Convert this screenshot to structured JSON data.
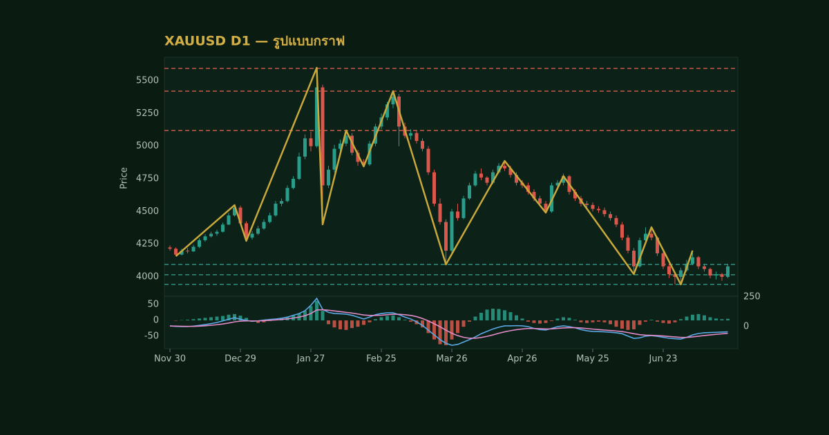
{
  "chart_data": [
    {
      "type": "candlestick",
      "title": "XAUUSD D1 — รูปแบบกราฟ",
      "ylabel": "Price",
      "categories": [
        "Nov 30",
        null,
        null,
        null,
        null,
        null,
        null,
        null,
        null,
        null,
        null,
        null,
        "Dec 29",
        null,
        null,
        null,
        null,
        null,
        null,
        null,
        null,
        null,
        null,
        null,
        "Jan 27",
        null,
        null,
        null,
        null,
        null,
        null,
        null,
        null,
        null,
        null,
        null,
        "Feb 25",
        null,
        null,
        null,
        null,
        null,
        null,
        null,
        null,
        null,
        null,
        null,
        "Mar 26",
        null,
        null,
        null,
        null,
        null,
        null,
        null,
        null,
        null,
        null,
        null,
        "Apr 26",
        null,
        null,
        null,
        null,
        null,
        null,
        null,
        null,
        null,
        null,
        null,
        "May 25",
        null,
        null,
        null,
        null,
        null,
        null,
        null,
        null,
        null,
        null,
        null,
        "Jun 23",
        null,
        null,
        null,
        null,
        null,
        null,
        null,
        null,
        null,
        null,
        null
      ],
      "ohlc": [
        [
          4225,
          4240,
          4200,
          4215
        ],
        [
          4215,
          4225,
          4160,
          4170
        ],
        [
          4170,
          4215,
          4165,
          4200
        ],
        [
          4200,
          4220,
          4180,
          4195
        ],
        [
          4195,
          4245,
          4190,
          4230
        ],
        [
          4230,
          4295,
          4220,
          4280
        ],
        [
          4280,
          4325,
          4270,
          4310
        ],
        [
          4310,
          4345,
          4300,
          4330
        ],
        [
          4330,
          4360,
          4315,
          4345
        ],
        [
          4345,
          4415,
          4340,
          4400
        ],
        [
          4400,
          4490,
          4395,
          4470
        ],
        [
          4470,
          4550,
          4460,
          4530
        ],
        [
          4530,
          4545,
          4395,
          4410
        ],
        [
          4410,
          4425,
          4270,
          4300
        ],
        [
          4300,
          4350,
          4285,
          4330
        ],
        [
          4330,
          4390,
          4320,
          4370
        ],
        [
          4370,
          4440,
          4360,
          4420
        ],
        [
          4420,
          4490,
          4410,
          4470
        ],
        [
          4470,
          4580,
          4460,
          4560
        ],
        [
          4560,
          4600,
          4540,
          4580
        ],
        [
          4580,
          4700,
          4570,
          4680
        ],
        [
          4680,
          4770,
          4670,
          4750
        ],
        [
          4750,
          4950,
          4740,
          4920
        ],
        [
          4920,
          5090,
          4900,
          5060
        ],
        [
          5060,
          5110,
          4960,
          5000
        ],
        [
          5000,
          5600,
          4990,
          5450
        ],
        [
          5450,
          5470,
          4400,
          4700
        ],
        [
          4700,
          4850,
          4680,
          4820
        ],
        [
          4820,
          5010,
          4800,
          4980
        ],
        [
          4980,
          5050,
          4950,
          5020
        ],
        [
          5020,
          5120,
          5000,
          5080
        ],
        [
          5080,
          5100,
          4930,
          4950
        ],
        [
          4950,
          4970,
          4850,
          4880
        ],
        [
          4880,
          4900,
          4845,
          4860
        ],
        [
          4860,
          5040,
          4850,
          5020
        ],
        [
          5020,
          5170,
          5000,
          5150
        ],
        [
          5150,
          5250,
          5130,
          5220
        ],
        [
          5220,
          5340,
          5200,
          5320
        ],
        [
          5320,
          5421,
          5290,
          5380
        ],
        [
          5380,
          5400,
          5000,
          5150
        ],
        [
          5150,
          5180,
          5060,
          5080
        ],
        [
          5080,
          5130,
          5050,
          5100
        ],
        [
          5100,
          5120,
          5020,
          5040
        ],
        [
          5040,
          5060,
          4960,
          4980
        ],
        [
          4980,
          5000,
          4780,
          4800
        ],
        [
          4800,
          4820,
          4540,
          4560
        ],
        [
          4560,
          4600,
          4400,
          4420
        ],
        [
          4420,
          4440,
          4095,
          4200
        ],
        [
          4200,
          4520,
          4180,
          4500
        ],
        [
          4500,
          4560,
          4430,
          4450
        ],
        [
          4450,
          4620,
          4440,
          4600
        ],
        [
          4600,
          4720,
          4590,
          4700
        ],
        [
          4700,
          4810,
          4690,
          4790
        ],
        [
          4790,
          4830,
          4740,
          4760
        ],
        [
          4760,
          4770,
          4700,
          4720
        ],
        [
          4720,
          4820,
          4710,
          4800
        ],
        [
          4800,
          4870,
          4790,
          4850
        ],
        [
          4850,
          4887,
          4810,
          4830
        ],
        [
          4830,
          4850,
          4760,
          4780
        ],
        [
          4780,
          4800,
          4700,
          4720
        ],
        [
          4720,
          4740,
          4680,
          4700
        ],
        [
          4700,
          4720,
          4630,
          4650
        ],
        [
          4650,
          4670,
          4580,
          4600
        ],
        [
          4600,
          4620,
          4540,
          4560
        ],
        [
          4560,
          4580,
          4491,
          4500
        ],
        [
          4500,
          4720,
          4490,
          4700
        ],
        [
          4700,
          4740,
          4680,
          4720
        ],
        [
          4720,
          4790,
          4700,
          4770
        ],
        [
          4770,
          4780,
          4630,
          4650
        ],
        [
          4650,
          4670,
          4580,
          4600
        ],
        [
          4600,
          4620,
          4540,
          4560
        ],
        [
          4560,
          4580,
          4530,
          4550
        ],
        [
          4550,
          4570,
          4500,
          4520
        ],
        [
          4520,
          4540,
          4490,
          4510
        ],
        [
          4510,
          4530,
          4460,
          4480
        ],
        [
          4480,
          4500,
          4430,
          4450
        ],
        [
          4450,
          4470,
          4380,
          4400
        ],
        [
          4400,
          4420,
          4280,
          4300
        ],
        [
          4300,
          4320,
          4180,
          4200
        ],
        [
          4200,
          4220,
          4020,
          4080
        ],
        [
          4080,
          4300,
          4070,
          4280
        ],
        [
          4280,
          4380,
          4270,
          4330
        ],
        [
          4330,
          4370,
          4280,
          4300
        ],
        [
          4300,
          4310,
          4160,
          4180
        ],
        [
          4180,
          4200,
          4060,
          4080
        ],
        [
          4080,
          4100,
          3990,
          4020
        ],
        [
          4020,
          4040,
          3942,
          4000
        ],
        [
          4000,
          4070,
          3960,
          4050
        ],
        [
          4050,
          4130,
          4040,
          4100
        ],
        [
          4100,
          4201,
          4090,
          4150
        ],
        [
          4150,
          4160,
          4060,
          4080
        ],
        [
          4080,
          4100,
          4040,
          4060
        ],
        [
          4060,
          4070,
          3990,
          4010
        ],
        [
          4010,
          4040,
          3980,
          4020
        ],
        [
          4020,
          4030,
          3970,
          4000
        ],
        [
          4000,
          4100,
          3990,
          4080
        ]
      ],
      "up_color": "#2a9d8a",
      "down_color": "#d9574c",
      "ylim": [
        3857,
        5680
      ],
      "yticks": [
        4000,
        4250,
        4500,
        4750,
        5000,
        5250,
        5500
      ],
      "levels": [
        {
          "value": 5595,
          "color": "#c65a48"
        },
        {
          "value": 5421,
          "color": "#c65a48"
        },
        {
          "value": 5120,
          "color": "#c65a48"
        },
        {
          "value": 4095,
          "color": "#2f8f82"
        },
        {
          "value": 4016,
          "color": "#2f8f82"
        },
        {
          "value": 3942,
          "color": "#2f8f82"
        }
      ],
      "zigzag": {
        "color": "#c9a83c",
        "x": [
          1,
          11,
          13,
          25,
          26,
          30,
          33,
          38,
          47,
          57,
          64,
          67,
          79,
          82,
          87,
          89
        ],
        "values": [
          4158,
          4549,
          4275,
          5600,
          4401,
          5120,
          4845,
          5421,
          4095,
          4887,
          4491,
          4771,
          4021,
          4380,
          3942,
          4201
        ]
      }
    },
    {
      "type": "macd",
      "values": [
        0,
        -1,
        1,
        2,
        4,
        6,
        8,
        10,
        12,
        14,
        18,
        20,
        15,
        8,
        -4,
        -8,
        -6,
        -2,
        4,
        8,
        12,
        16,
        22,
        30,
        45,
        62,
        30,
        -12,
        -22,
        -28,
        -30,
        -24,
        -20,
        -14,
        -6,
        4,
        10,
        14,
        16,
        10,
        2,
        -4,
        -12,
        -22,
        -40,
        -60,
        -75,
        -78,
        -60,
        -40,
        -20,
        -4,
        12,
        24,
        34,
        37,
        36,
        32,
        26,
        16,
        6,
        -4,
        -8,
        -10,
        -8,
        -2,
        6,
        10,
        8,
        2,
        -6,
        -8,
        -6,
        -4,
        -6,
        -12,
        -20,
        -26,
        -30,
        -28,
        -14,
        -4,
        2,
        -4,
        -8,
        -10,
        -6,
        4,
        12,
        18,
        20,
        16,
        10,
        6,
        4,
        5
      ],
      "up_color": "#2a9d8a",
      "down_color": "#d9574c",
      "ylim": [
        -89,
        74
      ],
      "yticks": [
        -50,
        0,
        50
      ],
      "y2lim": [
        -186,
        250
      ],
      "y2ticks": [
        0,
        250
      ],
      "series": [
        {
          "color": "#5aa9e6",
          "axis": "y2",
          "values": [
            6,
            2,
            0,
            0,
            4,
            10,
            17,
            25,
            35,
            48,
            62,
            75,
            62,
            52,
            45,
            48,
            55,
            60,
            64,
            70,
            80,
            95,
            110,
            134,
            180,
            238,
            145,
            120,
            110,
            108,
            105,
            95,
            80,
            64,
            80,
            100,
            110,
            116,
            116,
            100,
            80,
            64,
            40,
            10,
            -30,
            -70,
            -110,
            -140,
            -157,
            -150,
            -130,
            -110,
            -87,
            -60,
            -40,
            -20,
            -5,
            6,
            6,
            8,
            6,
            0,
            -15,
            -25,
            -29,
            -15,
            0,
            6,
            0,
            -10,
            -25,
            -35,
            -41,
            -42,
            -44,
            -48,
            -52,
            -60,
            -80,
            -99,
            -95,
            -80,
            -76,
            -82,
            -90,
            -98,
            -102,
            -105,
            -90,
            -70,
            -58,
            -52,
            -50,
            -48,
            -46,
            -44
          ]
        },
        {
          "color": "#e38bc9",
          "axis": "y2",
          "values": [
            5,
            4,
            3,
            2,
            2,
            4,
            7,
            11,
            16,
            22,
            30,
            40,
            46,
            48,
            48,
            48,
            50,
            53,
            56,
            60,
            65,
            72,
            80,
            92,
            110,
            140,
            142,
            138,
            132,
            126,
            120,
            114,
            106,
            98,
            94,
            94,
            96,
            100,
            104,
            104,
            100,
            94,
            84,
            68,
            48,
            24,
            -2,
            -30,
            -56,
            -76,
            -90,
            -98,
            -98,
            -92,
            -82,
            -70,
            -56,
            -44,
            -34,
            -26,
            -20,
            -16,
            -16,
            -18,
            -20,
            -19,
            -15,
            -11,
            -9,
            -9,
            -12,
            -16,
            -21,
            -25,
            -29,
            -33,
            -37,
            -42,
            -50,
            -60,
            -68,
            -72,
            -74,
            -76,
            -79,
            -83,
            -87,
            -91,
            -91,
            -87,
            -81,
            -75,
            -70,
            -65,
            -61,
            -57
          ]
        }
      ]
    }
  ]
}
